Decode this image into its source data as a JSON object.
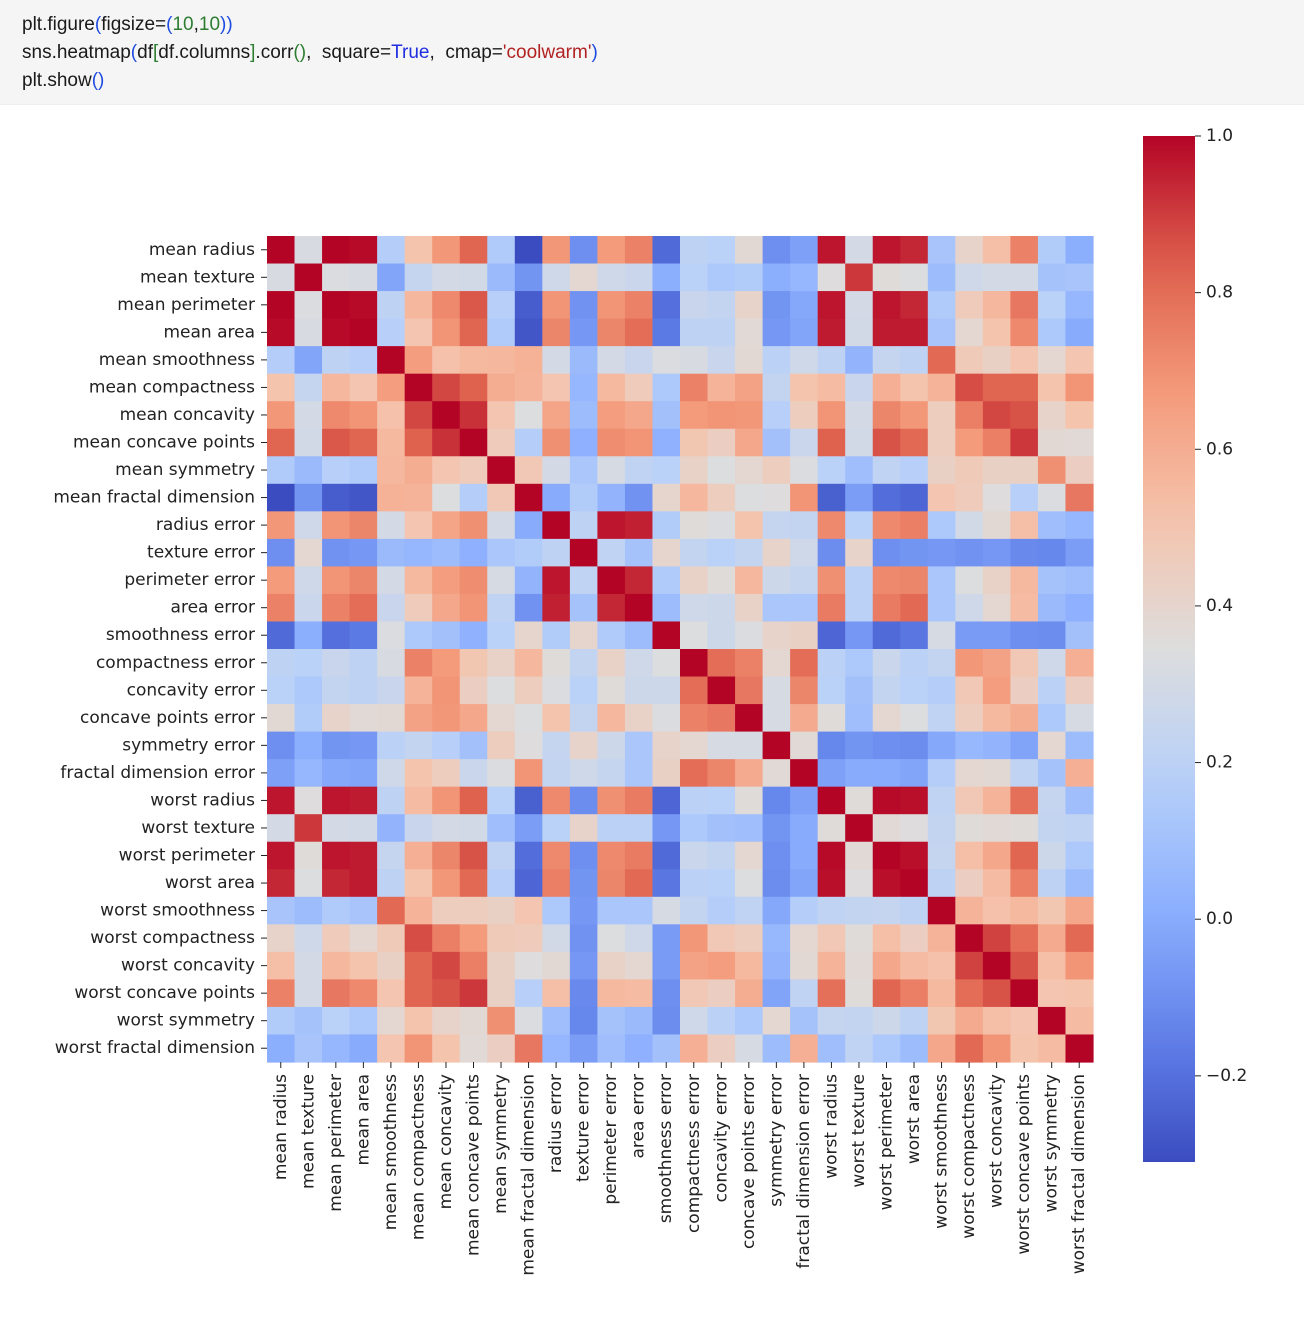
{
  "code": {
    "lines": [
      [
        {
          "t": "plt.figure",
          "c": "plain"
        },
        {
          "t": "(",
          "c": "paren"
        },
        {
          "t": "figsize=",
          "c": "plain"
        },
        {
          "t": "(",
          "c": "paren"
        },
        {
          "t": "10",
          "c": "num"
        },
        {
          "t": ",",
          "c": "plain"
        },
        {
          "t": "10",
          "c": "num"
        },
        {
          "t": "))",
          "c": "paren"
        }
      ],
      [
        {
          "t": "sns.heatmap",
          "c": "plain"
        },
        {
          "t": "(",
          "c": "paren"
        },
        {
          "t": "df",
          "c": "plain"
        },
        {
          "t": "[",
          "c": "num"
        },
        {
          "t": "df.columns",
          "c": "plain"
        },
        {
          "t": "]",
          "c": "num"
        },
        {
          "t": ".corr",
          "c": "plain"
        },
        {
          "t": "()",
          "c": "num"
        },
        {
          "t": ",  square=",
          "c": "plain"
        },
        {
          "t": "True",
          "c": "kw"
        },
        {
          "t": ",  cmap=",
          "c": "plain"
        },
        {
          "t": "'coolwarm'",
          "c": "str"
        },
        {
          "t": ")",
          "c": "paren"
        }
      ],
      [
        {
          "t": "plt.show",
          "c": "plain"
        },
        {
          "t": "()",
          "c": "paren"
        }
      ]
    ]
  },
  "chart_data": {
    "type": "heatmap",
    "title": "",
    "cmap": "coolwarm",
    "square": true,
    "vmin": -0.31,
    "vmax": 1.0,
    "colorbar": {
      "ticks": [
        -0.2,
        0.0,
        0.2,
        0.4,
        0.6,
        0.8,
        1.0
      ],
      "tick_labels": [
        "−0.2",
        "0.0",
        "0.2",
        "0.4",
        "0.6",
        "0.8",
        "1.0"
      ],
      "placement": "right"
    },
    "labels": [
      "mean radius",
      "mean texture",
      "mean perimeter",
      "mean area",
      "mean smoothness",
      "mean compactness",
      "mean concavity",
      "mean concave points",
      "mean symmetry",
      "mean fractal dimension",
      "radius error",
      "texture error",
      "perimeter error",
      "area error",
      "smoothness error",
      "compactness error",
      "concavity error",
      "concave points error",
      "symmetry error",
      "fractal dimension error",
      "worst radius",
      "worst texture",
      "worst perimeter",
      "worst area",
      "worst smoothness",
      "worst compactness",
      "worst concavity",
      "worst concave points",
      "worst symmetry",
      "worst fractal dimension"
    ],
    "matrix": [
      [
        1.0,
        0.32,
        1.0,
        0.99,
        0.17,
        0.51,
        0.68,
        0.82,
        0.15,
        -0.31,
        0.68,
        -0.1,
        0.67,
        0.74,
        -0.22,
        0.21,
        0.19,
        0.38,
        -0.1,
        -0.04,
        0.97,
        0.3,
        0.97,
        0.94,
        0.12,
        0.41,
        0.53,
        0.74,
        0.16,
        0.01
      ],
      [
        0.32,
        1.0,
        0.33,
        0.32,
        -0.02,
        0.24,
        0.3,
        0.29,
        0.07,
        -0.08,
        0.28,
        0.39,
        0.28,
        0.26,
        0.01,
        0.19,
        0.14,
        0.16,
        0.01,
        0.05,
        0.35,
        0.91,
        0.36,
        0.34,
        0.08,
        0.28,
        0.3,
        0.3,
        0.11,
        0.12
      ],
      [
        1.0,
        0.33,
        1.0,
        0.99,
        0.21,
        0.56,
        0.72,
        0.85,
        0.18,
        -0.26,
        0.69,
        -0.09,
        0.69,
        0.74,
        -0.2,
        0.25,
        0.23,
        0.41,
        -0.08,
        -0.01,
        0.97,
        0.3,
        0.97,
        0.94,
        0.15,
        0.46,
        0.56,
        0.77,
        0.19,
        0.05
      ],
      [
        0.99,
        0.32,
        0.99,
        1.0,
        0.18,
        0.5,
        0.69,
        0.82,
        0.15,
        -0.28,
        0.73,
        -0.07,
        0.73,
        0.8,
        -0.17,
        0.21,
        0.21,
        0.37,
        -0.07,
        -0.02,
        0.96,
        0.29,
        0.96,
        0.96,
        0.12,
        0.39,
        0.51,
        0.72,
        0.14,
        0.0
      ],
      [
        0.17,
        -0.02,
        0.21,
        0.18,
        1.0,
        0.66,
        0.52,
        0.55,
        0.56,
        0.58,
        0.3,
        0.07,
        0.3,
        0.25,
        0.33,
        0.32,
        0.25,
        0.38,
        0.2,
        0.28,
        0.21,
        0.04,
        0.24,
        0.21,
        0.81,
        0.47,
        0.43,
        0.5,
        0.39,
        0.5
      ],
      [
        0.51,
        0.24,
        0.56,
        0.5,
        0.66,
        1.0,
        0.88,
        0.83,
        0.6,
        0.57,
        0.5,
        0.05,
        0.55,
        0.46,
        0.14,
        0.74,
        0.57,
        0.64,
        0.23,
        0.51,
        0.54,
        0.25,
        0.59,
        0.51,
        0.57,
        0.87,
        0.82,
        0.82,
        0.51,
        0.69
      ],
      [
        0.68,
        0.3,
        0.72,
        0.69,
        0.52,
        0.88,
        1.0,
        0.92,
        0.5,
        0.34,
        0.63,
        0.08,
        0.66,
        0.62,
        0.1,
        0.67,
        0.69,
        0.68,
        0.18,
        0.45,
        0.69,
        0.3,
        0.73,
        0.68,
        0.45,
        0.75,
        0.88,
        0.86,
        0.41,
        0.51
      ],
      [
        0.82,
        0.29,
        0.85,
        0.82,
        0.55,
        0.83,
        0.92,
        1.0,
        0.46,
        0.17,
        0.7,
        0.02,
        0.71,
        0.69,
        0.03,
        0.49,
        0.44,
        0.62,
        0.1,
        0.26,
        0.83,
        0.29,
        0.86,
        0.81,
        0.45,
        0.67,
        0.75,
        0.91,
        0.38,
        0.37
      ],
      [
        0.15,
        0.07,
        0.18,
        0.15,
        0.56,
        0.6,
        0.5,
        0.46,
        1.0,
        0.48,
        0.3,
        0.13,
        0.31,
        0.22,
        0.19,
        0.42,
        0.34,
        0.39,
        0.45,
        0.33,
        0.19,
        0.09,
        0.22,
        0.18,
        0.43,
        0.47,
        0.43,
        0.43,
        0.7,
        0.44
      ],
      [
        -0.31,
        -0.08,
        -0.26,
        -0.28,
        0.58,
        0.57,
        0.34,
        0.17,
        0.48,
        1.0,
        0.0,
        0.16,
        0.04,
        -0.09,
        0.4,
        0.56,
        0.45,
        0.34,
        0.35,
        0.69,
        -0.25,
        -0.05,
        -0.21,
        -0.23,
        0.5,
        0.46,
        0.35,
        0.18,
        0.33,
        0.77
      ],
      [
        0.68,
        0.28,
        0.69,
        0.73,
        0.3,
        0.5,
        0.63,
        0.7,
        0.3,
        0.0,
        1.0,
        0.21,
        0.97,
        0.95,
        0.16,
        0.36,
        0.33,
        0.51,
        0.24,
        0.23,
        0.72,
        0.19,
        0.72,
        0.75,
        0.14,
        0.29,
        0.38,
        0.53,
        0.09,
        0.05
      ],
      [
        -0.1,
        0.39,
        -0.09,
        -0.07,
        0.07,
        0.05,
        0.08,
        0.02,
        0.13,
        0.16,
        0.21,
        1.0,
        0.22,
        0.11,
        0.4,
        0.23,
        0.19,
        0.23,
        0.41,
        0.28,
        -0.11,
        0.41,
        -0.1,
        -0.08,
        -0.07,
        -0.09,
        -0.07,
        -0.12,
        -0.13,
        -0.05
      ],
      [
        0.67,
        0.28,
        0.69,
        0.73,
        0.3,
        0.55,
        0.66,
        0.71,
        0.31,
        0.04,
        0.97,
        0.22,
        1.0,
        0.94,
        0.15,
        0.42,
        0.36,
        0.56,
        0.27,
        0.24,
        0.7,
        0.2,
        0.72,
        0.73,
        0.13,
        0.34,
        0.42,
        0.55,
        0.11,
        0.09
      ],
      [
        0.74,
        0.26,
        0.74,
        0.8,
        0.25,
        0.46,
        0.62,
        0.69,
        0.22,
        -0.09,
        0.95,
        0.11,
        0.94,
        1.0,
        0.08,
        0.28,
        0.27,
        0.42,
        0.13,
        0.13,
        0.76,
        0.2,
        0.76,
        0.81,
        0.13,
        0.28,
        0.39,
        0.54,
        0.07,
        0.02
      ],
      [
        -0.22,
        0.01,
        -0.2,
        -0.17,
        0.33,
        0.14,
        0.1,
        0.03,
        0.19,
        0.4,
        0.16,
        0.4,
        0.15,
        0.08,
        1.0,
        0.34,
        0.27,
        0.33,
        0.41,
        0.43,
        -0.23,
        -0.07,
        -0.22,
        -0.18,
        0.31,
        -0.06,
        -0.06,
        -0.1,
        -0.11,
        0.1
      ],
      [
        0.21,
        0.19,
        0.25,
        0.21,
        0.32,
        0.74,
        0.67,
        0.49,
        0.42,
        0.56,
        0.36,
        0.23,
        0.42,
        0.28,
        0.34,
        1.0,
        0.8,
        0.74,
        0.39,
        0.8,
        0.2,
        0.14,
        0.26,
        0.2,
        0.23,
        0.68,
        0.64,
        0.48,
        0.28,
        0.59
      ],
      [
        0.19,
        0.14,
        0.23,
        0.21,
        0.25,
        0.57,
        0.69,
        0.44,
        0.34,
        0.45,
        0.33,
        0.19,
        0.36,
        0.27,
        0.27,
        0.8,
        1.0,
        0.77,
        0.31,
        0.73,
        0.19,
        0.1,
        0.23,
        0.19,
        0.17,
        0.48,
        0.66,
        0.44,
        0.2,
        0.44
      ],
      [
        0.38,
        0.16,
        0.41,
        0.37,
        0.38,
        0.64,
        0.68,
        0.62,
        0.39,
        0.34,
        0.51,
        0.23,
        0.56,
        0.42,
        0.33,
        0.74,
        0.77,
        1.0,
        0.31,
        0.61,
        0.36,
        0.09,
        0.39,
        0.34,
        0.22,
        0.45,
        0.55,
        0.6,
        0.14,
        0.31
      ],
      [
        -0.1,
        0.01,
        -0.08,
        -0.07,
        0.2,
        0.23,
        0.18,
        0.1,
        0.45,
        0.35,
        0.24,
        0.41,
        0.27,
        0.13,
        0.41,
        0.39,
        0.31,
        0.31,
        1.0,
        0.37,
        -0.13,
        -0.08,
        -0.1,
        -0.11,
        -0.01,
        0.06,
        0.04,
        -0.03,
        0.39,
        0.08
      ],
      [
        -0.04,
        0.05,
        -0.01,
        -0.02,
        0.28,
        0.51,
        0.45,
        0.26,
        0.33,
        0.69,
        0.23,
        0.28,
        0.24,
        0.13,
        0.43,
        0.8,
        0.73,
        0.61,
        0.37,
        1.0,
        -0.04,
        -0.0,
        -0.0,
        -0.02,
        0.17,
        0.39,
        0.38,
        0.22,
        0.11,
        0.59
      ],
      [
        0.97,
        0.35,
        0.97,
        0.96,
        0.21,
        0.54,
        0.69,
        0.83,
        0.19,
        -0.25,
        0.72,
        -0.11,
        0.7,
        0.76,
        -0.23,
        0.2,
        0.19,
        0.36,
        -0.13,
        -0.04,
        1.0,
        0.36,
        0.99,
        0.98,
        0.22,
        0.48,
        0.57,
        0.79,
        0.24,
        0.09
      ],
      [
        0.3,
        0.91,
        0.3,
        0.29,
        0.04,
        0.25,
        0.3,
        0.29,
        0.09,
        -0.05,
        0.19,
        0.41,
        0.2,
        0.2,
        -0.07,
        0.14,
        0.1,
        0.09,
        -0.08,
        -0.0,
        0.36,
        1.0,
        0.37,
        0.35,
        0.23,
        0.36,
        0.37,
        0.36,
        0.23,
        0.22
      ],
      [
        0.97,
        0.36,
        0.97,
        0.96,
        0.24,
        0.59,
        0.73,
        0.86,
        0.22,
        -0.21,
        0.72,
        -0.1,
        0.72,
        0.76,
        -0.22,
        0.26,
        0.23,
        0.39,
        -0.1,
        -0.0,
        0.99,
        0.37,
        1.0,
        0.98,
        0.24,
        0.53,
        0.62,
        0.82,
        0.27,
        0.14
      ],
      [
        0.94,
        0.34,
        0.94,
        0.96,
        0.21,
        0.51,
        0.68,
        0.81,
        0.18,
        -0.23,
        0.75,
        -0.08,
        0.73,
        0.81,
        -0.18,
        0.2,
        0.19,
        0.34,
        -0.11,
        -0.02,
        0.98,
        0.35,
        0.98,
        1.0,
        0.21,
        0.44,
        0.54,
        0.75,
        0.21,
        0.08
      ],
      [
        0.12,
        0.08,
        0.15,
        0.12,
        0.81,
        0.57,
        0.45,
        0.45,
        0.43,
        0.5,
        0.14,
        -0.07,
        0.13,
        0.13,
        0.31,
        0.23,
        0.17,
        0.22,
        -0.01,
        0.17,
        0.22,
        0.23,
        0.24,
        0.21,
        1.0,
        0.57,
        0.52,
        0.55,
        0.49,
        0.62
      ],
      [
        0.41,
        0.28,
        0.46,
        0.39,
        0.47,
        0.87,
        0.75,
        0.67,
        0.47,
        0.46,
        0.29,
        -0.09,
        0.34,
        0.28,
        -0.06,
        0.68,
        0.48,
        0.45,
        0.06,
        0.39,
        0.48,
        0.36,
        0.53,
        0.44,
        0.57,
        1.0,
        0.89,
        0.8,
        0.61,
        0.81
      ],
      [
        0.53,
        0.3,
        0.56,
        0.51,
        0.43,
        0.82,
        0.88,
        0.75,
        0.43,
        0.35,
        0.38,
        -0.07,
        0.42,
        0.39,
        -0.06,
        0.64,
        0.66,
        0.55,
        0.04,
        0.38,
        0.57,
        0.37,
        0.62,
        0.54,
        0.52,
        0.89,
        1.0,
        0.86,
        0.53,
        0.69
      ],
      [
        0.74,
        0.3,
        0.77,
        0.72,
        0.5,
        0.82,
        0.86,
        0.91,
        0.43,
        0.18,
        0.53,
        -0.12,
        0.55,
        0.54,
        -0.1,
        0.48,
        0.44,
        0.6,
        -0.03,
        0.22,
        0.79,
        0.36,
        0.82,
        0.75,
        0.55,
        0.8,
        0.86,
        1.0,
        0.5,
        0.51
      ],
      [
        0.16,
        0.11,
        0.19,
        0.14,
        0.39,
        0.51,
        0.41,
        0.38,
        0.7,
        0.33,
        0.09,
        -0.13,
        0.11,
        0.07,
        -0.11,
        0.28,
        0.2,
        0.14,
        0.39,
        0.11,
        0.24,
        0.23,
        0.27,
        0.21,
        0.49,
        0.61,
        0.53,
        0.5,
        1.0,
        0.54
      ],
      [
        0.01,
        0.12,
        0.05,
        0.0,
        0.5,
        0.69,
        0.51,
        0.37,
        0.44,
        0.77,
        0.05,
        -0.05,
        0.09,
        0.02,
        0.1,
        0.59,
        0.44,
        0.31,
        0.08,
        0.59,
        0.09,
        0.22,
        0.14,
        0.08,
        0.62,
        0.81,
        0.69,
        0.51,
        0.54,
        1.0
      ]
    ]
  }
}
